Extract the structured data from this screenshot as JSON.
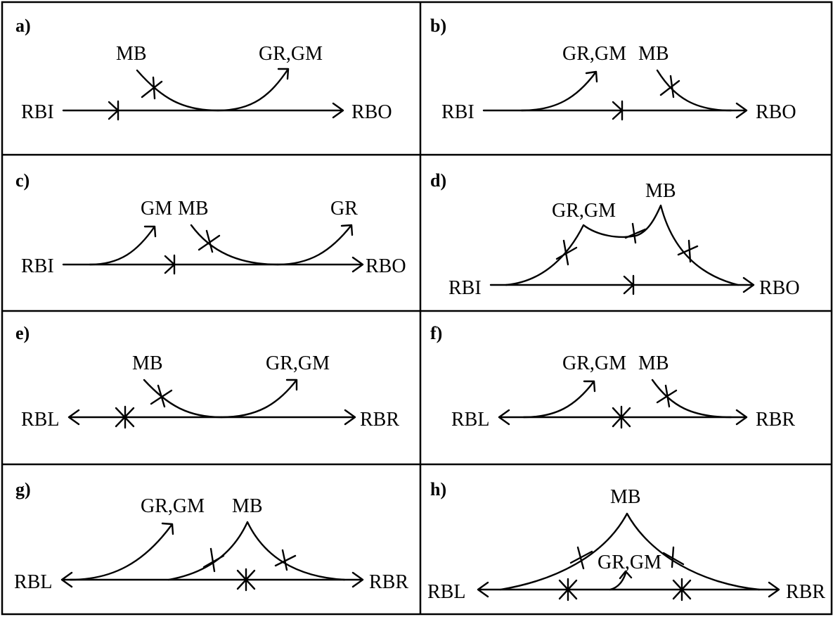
{
  "panels": [
    {
      "id": "a",
      "label": "a)",
      "left": "RBI",
      "right": "RBO",
      "texts": [
        "MB",
        "GR,GM"
      ]
    },
    {
      "id": "b",
      "label": "b)",
      "left": "RBI",
      "right": "RBO",
      "texts": [
        "GR,GM",
        "MB"
      ]
    },
    {
      "id": "c",
      "label": "c)",
      "left": "RBI",
      "right": "RBO",
      "texts": [
        "GM",
        "MB",
        "GR"
      ]
    },
    {
      "id": "d",
      "label": "d)",
      "left": "RBI",
      "right": "RBO",
      "texts": [
        "GR,GM",
        "MB"
      ]
    },
    {
      "id": "e",
      "label": "e)",
      "left": "RBL",
      "right": "RBR",
      "texts": [
        "MB",
        "GR,GM"
      ]
    },
    {
      "id": "f",
      "label": "f)",
      "left": "RBL",
      "right": "RBR",
      "texts": [
        "GR,GM",
        "MB"
      ]
    },
    {
      "id": "g",
      "label": "g)",
      "left": "RBL",
      "right": "RBR",
      "texts": [
        "GR,GM",
        "MB"
      ]
    },
    {
      "id": "h",
      "label": "h)",
      "left": "RBL",
      "right": "RBR",
      "texts": [
        "MB",
        "GR,GM"
      ]
    }
  ]
}
